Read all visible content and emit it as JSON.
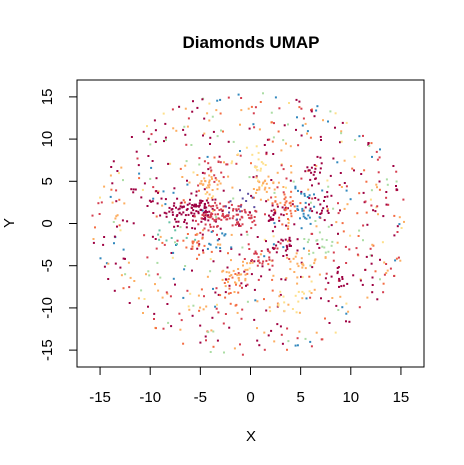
{
  "chart_data": {
    "type": "scatter",
    "title": "Diamonds UMAP",
    "xlabel": "X",
    "ylabel": "Y",
    "xlim": [
      -17.3,
      17.3
    ],
    "ylim": [
      -17.0,
      17.0
    ],
    "xticks": [
      -15,
      -10,
      -5,
      0,
      5,
      10,
      15
    ],
    "yticks": [
      -15,
      -10,
      -5,
      0,
      5,
      10,
      15
    ],
    "xtick_labels": [
      "-15",
      "-10",
      "-5",
      "0",
      "5",
      "10",
      "15"
    ],
    "ytick_labels": [
      "-15",
      "-10",
      "-5",
      "0",
      "5",
      "10",
      "15"
    ],
    "grid": false,
    "legend": "none",
    "palette": [
      "#9E0142",
      "#D53E4F",
      "#F46D43",
      "#FDAE61",
      "#FEE08B",
      "#E6F598",
      "#ABDDA4",
      "#66C2A5",
      "#3288BD",
      "#5E4FA2"
    ],
    "clusters": [
      {
        "x": -4.8,
        "y": 1.9,
        "color": "#9E0142",
        "n": 60
      },
      {
        "x": -3.5,
        "y": 0.8,
        "color": "#D53E4F",
        "n": 55
      },
      {
        "x": -7.3,
        "y": 1.4,
        "color": "#9E0142",
        "n": 40
      },
      {
        "x": -0.8,
        "y": 0.9,
        "color": "#D53E4F",
        "n": 35
      },
      {
        "x": -1.2,
        "y": 2.3,
        "color": "#5E4FA2",
        "n": 12
      },
      {
        "x": -3.3,
        "y": -2.2,
        "color": "#3288BD",
        "n": 10
      },
      {
        "x": -5.2,
        "y": -2.8,
        "color": "#F46D43",
        "n": 20
      },
      {
        "x": -4.0,
        "y": 4.5,
        "color": "#FDAE61",
        "n": 25
      },
      {
        "x": 1.5,
        "y": 4.2,
        "color": "#FDAE61",
        "n": 25
      },
      {
        "x": 2.2,
        "y": 0.7,
        "color": "#9E0142",
        "n": 30
      },
      {
        "x": 3.6,
        "y": 2.3,
        "color": "#F46D43",
        "n": 28
      },
      {
        "x": 5.3,
        "y": 3.2,
        "color": "#3288BD",
        "n": 12
      },
      {
        "x": 5.6,
        "y": 1.1,
        "color": "#3288BD",
        "n": 14
      },
      {
        "x": 7.2,
        "y": 2.0,
        "color": "#9E0142",
        "n": 20
      },
      {
        "x": 6.5,
        "y": 6.3,
        "color": "#9E0142",
        "n": 18
      },
      {
        "x": 3.2,
        "y": -2.5,
        "color": "#9E0142",
        "n": 22
      },
      {
        "x": 1.0,
        "y": -4.0,
        "color": "#D53E4F",
        "n": 22
      },
      {
        "x": -1.2,
        "y": -5.8,
        "color": "#FDAE61",
        "n": 25
      },
      {
        "x": 5.0,
        "y": -5.0,
        "color": "#FDAE61",
        "n": 20
      },
      {
        "x": 7.0,
        "y": -2.4,
        "color": "#ABDDA4",
        "n": 15
      },
      {
        "x": -7.8,
        "y": -1.6,
        "color": "#66C2A5",
        "n": 10
      },
      {
        "x": 9.0,
        "y": -6.2,
        "color": "#9E0142",
        "n": 14
      },
      {
        "x": -3.0,
        "y": 6.8,
        "color": "#D53E4F",
        "n": 12
      },
      {
        "x": -9.6,
        "y": 3.6,
        "color": "#9E0142",
        "n": 10
      },
      {
        "x": 0.2,
        "y": 7.2,
        "color": "#FEE08B",
        "n": 14
      },
      {
        "x": -2.0,
        "y": -8.5,
        "color": "#F46D43",
        "n": 14
      },
      {
        "x": 4.0,
        "y": -9.0,
        "color": "#FEE08B",
        "n": 14
      }
    ],
    "background_points": 720,
    "background_radius": 15.8,
    "background_colors": [
      "#9E0142",
      "#9E0142",
      "#9E0142",
      "#D53E4F",
      "#D53E4F",
      "#F46D43",
      "#FDAE61",
      "#FDAE61",
      "#FEE08B",
      "#ABDDA4",
      "#3288BD"
    ]
  }
}
